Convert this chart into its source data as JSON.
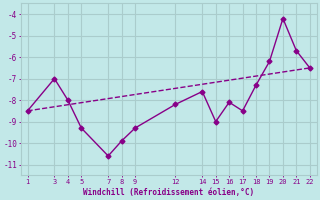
{
  "xlabel": "Windchill (Refroidissement éolien,°C)",
  "bg_color": "#c2e8e8",
  "line_color": "#880088",
  "grid_color": "#aacccc",
  "x_ticks": [
    1,
    3,
    4,
    5,
    7,
    8,
    9,
    12,
    14,
    15,
    16,
    17,
    18,
    19,
    20,
    21,
    22
  ],
  "line1_x": [
    1,
    3,
    4,
    5,
    7,
    8,
    9,
    12,
    14,
    15,
    16,
    17,
    18,
    19,
    20,
    21,
    22
  ],
  "line1_y": [
    -8.5,
    -7.0,
    -8.0,
    -9.3,
    -10.6,
    -9.9,
    -9.3,
    -8.2,
    -7.6,
    -9.0,
    -8.1,
    -8.5,
    -7.3,
    -6.2,
    -4.2,
    -5.7,
    -6.5
  ],
  "line2_x": [
    1,
    22
  ],
  "line2_y": [
    -8.5,
    -6.5
  ],
  "ylim": [
    -11.5,
    -3.5
  ],
  "xlim": [
    0.5,
    22.5
  ],
  "yticks": [
    -11,
    -10,
    -9,
    -8,
    -7,
    -6,
    -5,
    -4
  ],
  "font_color": "#880088",
  "font_family": "monospace"
}
